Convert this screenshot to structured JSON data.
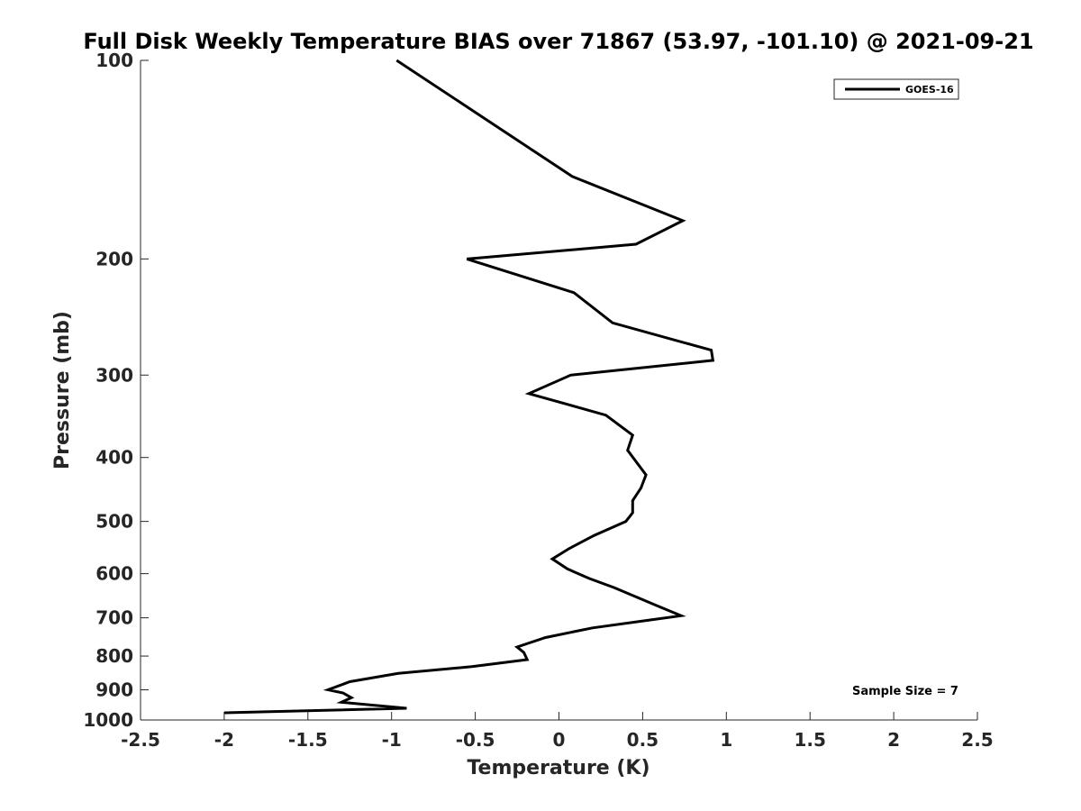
{
  "chart_data": {
    "type": "line",
    "title": "Full Disk Weekly Temperature BIAS over 71867 (53.97, -101.10) @ 2021-09-21",
    "xlabel": "Temperature (K)",
    "ylabel": "Pressure (mb)",
    "xlim": [
      -2.5,
      2.5
    ],
    "ylim": [
      100,
      1000
    ],
    "y_scale": "log",
    "y_reversed": true,
    "xticks": [
      -2.5,
      -2,
      -1.5,
      -1,
      -0.5,
      0,
      0.5,
      1,
      1.5,
      2,
      2.5
    ],
    "xtick_labels": [
      "-2.5",
      "-2",
      "-1.5",
      "-1",
      "-0.5",
      "0",
      "0.5",
      "1",
      "1.5",
      "2",
      "2.5"
    ],
    "yticks": [
      100,
      200,
      300,
      400,
      500,
      600,
      700,
      800,
      900,
      1000
    ],
    "ytick_labels": [
      "100",
      "200",
      "300",
      "400",
      "500",
      "600",
      "700",
      "800",
      "900",
      "1000"
    ],
    "grid": false,
    "legend_position": "top-right",
    "series": [
      {
        "name": "GOES-16",
        "color": "#000000",
        "points": [
          {
            "x": -0.97,
            "p": 100
          },
          {
            "x": 0.08,
            "p": 150
          },
          {
            "x": 0.74,
            "p": 175
          },
          {
            "x": 0.46,
            "p": 190
          },
          {
            "x": -0.55,
            "p": 200
          },
          {
            "x": 0.09,
            "p": 225
          },
          {
            "x": 0.32,
            "p": 250
          },
          {
            "x": 0.91,
            "p": 275
          },
          {
            "x": 0.92,
            "p": 285
          },
          {
            "x": 0.07,
            "p": 300
          },
          {
            "x": -0.18,
            "p": 320
          },
          {
            "x": 0.28,
            "p": 345
          },
          {
            "x": 0.44,
            "p": 370
          },
          {
            "x": 0.41,
            "p": 390
          },
          {
            "x": 0.52,
            "p": 425
          },
          {
            "x": 0.49,
            "p": 445
          },
          {
            "x": 0.44,
            "p": 465
          },
          {
            "x": 0.44,
            "p": 485
          },
          {
            "x": 0.4,
            "p": 500
          },
          {
            "x": 0.21,
            "p": 525
          },
          {
            "x": 0.06,
            "p": 550
          },
          {
            "x": -0.04,
            "p": 570
          },
          {
            "x": 0.05,
            "p": 590
          },
          {
            "x": 0.18,
            "p": 610
          },
          {
            "x": 0.33,
            "p": 630
          },
          {
            "x": 0.58,
            "p": 670
          },
          {
            "x": 0.73,
            "p": 695
          },
          {
            "x": 0.55,
            "p": 705
          },
          {
            "x": 0.2,
            "p": 725
          },
          {
            "x": -0.08,
            "p": 750
          },
          {
            "x": -0.25,
            "p": 775
          },
          {
            "x": -0.21,
            "p": 790
          },
          {
            "x": -0.19,
            "p": 810
          },
          {
            "x": -0.52,
            "p": 830
          },
          {
            "x": -0.96,
            "p": 850
          },
          {
            "x": -1.25,
            "p": 875
          },
          {
            "x": -1.38,
            "p": 900
          },
          {
            "x": -1.29,
            "p": 910
          },
          {
            "x": -1.24,
            "p": 925
          },
          {
            "x": -1.3,
            "p": 940
          },
          {
            "x": -0.91,
            "p": 960
          },
          {
            "x": -2.0,
            "p": 975
          }
        ]
      }
    ],
    "annotations": [
      {
        "text": "Sample Size = 7",
        "position": "bottom-right"
      }
    ]
  }
}
